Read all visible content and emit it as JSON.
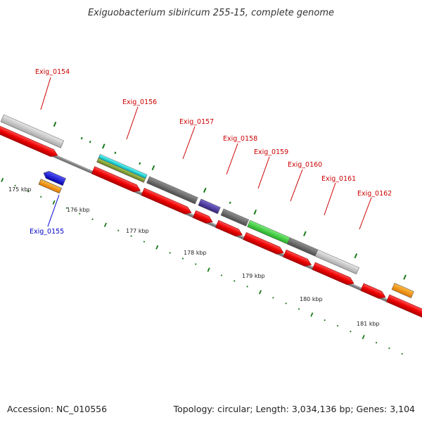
{
  "title": "Exiguobacterium sibiricum 255-15, complete genome",
  "footer": {
    "accession": "Accession: NC_010556",
    "summary": "Topology: circular; Length: 3,034,136 bp; Genes: 3,104"
  },
  "scale_labels": [
    "175 kbp",
    "176 kbp",
    "177 kbp",
    "178 kbp",
    "179 kbp",
    "180 kbp",
    "181 kbp"
  ],
  "gene_labels": [
    {
      "id": "Exig_0154",
      "strand": "forward"
    },
    {
      "id": "Exig_0155",
      "strand": "reverse"
    },
    {
      "id": "Exig_0156",
      "strand": "forward"
    },
    {
      "id": "Exig_0157",
      "strand": "forward"
    },
    {
      "id": "Exig_0158",
      "strand": "forward"
    },
    {
      "id": "Exig_0159",
      "strand": "forward"
    },
    {
      "id": "Exig_0160",
      "strand": "forward"
    },
    {
      "id": "Exig_0161",
      "strand": "forward"
    },
    {
      "id": "Exig_0162",
      "strand": "forward"
    }
  ],
  "colors": {
    "forward_label": "#cc0000",
    "reverse_label": "#0000cc",
    "cds": "#ee0000",
    "tick": "#1a7a1a",
    "backbone": "#888888"
  }
}
